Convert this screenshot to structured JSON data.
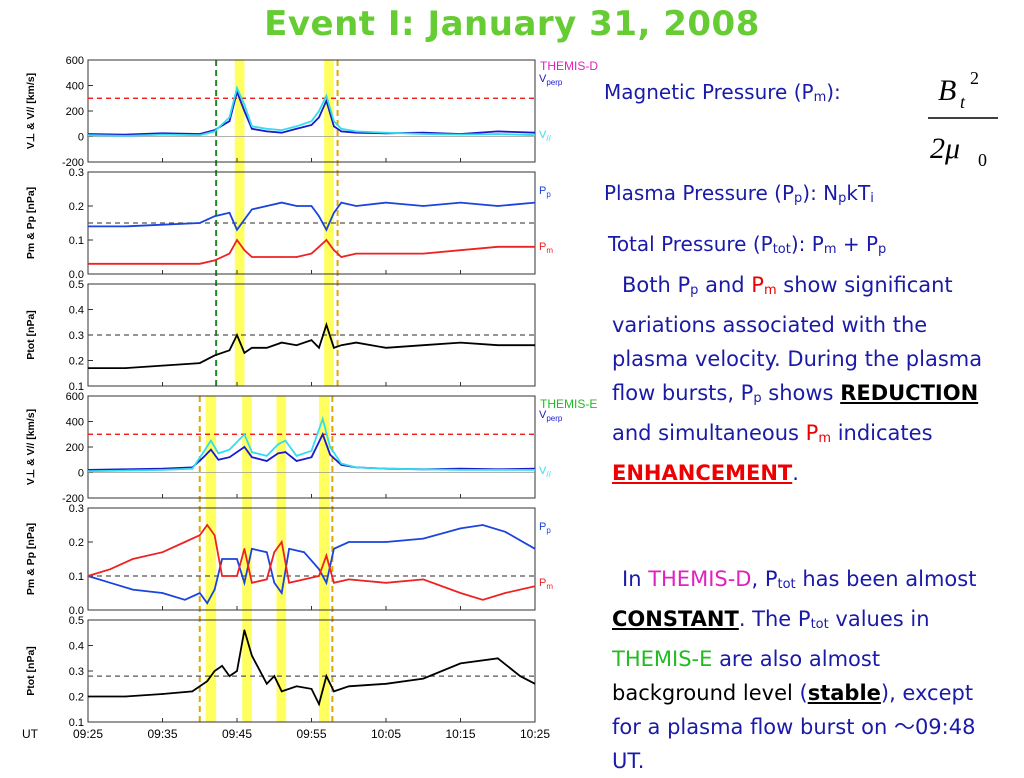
{
  "title": "Event I: January 31, 2008",
  "colors": {
    "title": "#66cc33",
    "text": "#1a1aa8",
    "red": "#ee0000",
    "magenta": "#e020c0",
    "green": "#22bb22",
    "vperp": "#1a1acc",
    "vpar": "#33ddee",
    "pp": "#1a44dd",
    "pm": "#ee2222",
    "ptot": "#000000",
    "highlight": "#ffff44"
  },
  "right_text": {
    "mag_pressure": {
      "label": "Magnetic Pressure (P",
      "sub": "m",
      "close": "):"
    },
    "formula": {
      "num": "B",
      "num_sub": "t",
      "num_sup": "2",
      "den": "2μ",
      "den_sub": "0"
    },
    "plasma_pressure": {
      "label": "Plasma Pressure (P",
      "sub": "p",
      "mid": "): N",
      "sub2": "p",
      "mid2": "kT",
      "sub3": "i"
    },
    "total_pressure": {
      "label": "Total Pressure (P",
      "sub": "tot",
      "mid": "): P",
      "sub2": "m",
      "mid2": " + P",
      "sub3": "p"
    },
    "para1": {
      "t1": "Both P",
      "s1": "p",
      "t2": " and ",
      "red1": "P",
      "red1_sub": "m",
      "t3": " show significant variations associated with the plasma velocity. During the plasma flow bursts, P",
      "s2": "p",
      "t4": " shows ",
      "emph1": "REDUCTION ",
      "t5": "and simultaneous ",
      "red2": "P",
      "red2_sub": "m",
      "t6": " indicates ",
      "emph2": "ENHANCEMENT",
      "t7": "."
    },
    "para2": {
      "t1": "In ",
      "themis_d": "THEMIS-D",
      "t2": ", P",
      "s1": "tot",
      "t3": " has been almost ",
      "emph": "CONSTANT",
      "t4": ". The P",
      "s2": "tot",
      "t5": " values in ",
      "themis_e": "THEMIS-E",
      "t6": " are also almost ",
      "bg": "background level",
      "t7": " (",
      "stable": "stable",
      "t8": "), except for a plasma flow burst on ～09:48 UT."
    }
  },
  "chart_data": {
    "type": "line",
    "x_ticks": [
      "09:25",
      "09:35",
      "09:45",
      "09:55",
      "10:05",
      "10:15",
      "10:25"
    ],
    "xlim_minutes": [
      0,
      60
    ],
    "ut_label": "UT",
    "spacecraft": [
      {
        "name": "THEMIS-D",
        "highlight_bands_min": [
          [
            19.7,
            21.0
          ],
          [
            31.7,
            33.0
          ]
        ],
        "dashed_lines_min": [
          {
            "t": 17.2,
            "color": "#228822"
          },
          {
            "t": 33.5,
            "color": "#ddaa00"
          }
        ]
      },
      {
        "name": "THEMIS-E",
        "highlight_bands_min": [
          [
            15.8,
            17.2
          ],
          [
            20.7,
            22.0
          ],
          [
            25.3,
            26.6
          ],
          [
            31.0,
            32.4
          ]
        ],
        "dashed_lines_min": [
          {
            "t": 15.0,
            "color": "#ddaa00"
          },
          {
            "t": 32.8,
            "color": "#ddaa00"
          }
        ]
      }
    ],
    "panels": [
      {
        "sc": 0,
        "ylabel": "V_perp & V_// [km/s]",
        "ylim": [
          -200,
          600
        ],
        "yticks": [
          "600",
          "400",
          "200",
          "0",
          "-200"
        ],
        "ref": 300,
        "ref_color": "#ee0000",
        "legend": [
          "V_perp",
          "V_//"
        ],
        "series": [
          {
            "name": "V_perp",
            "color": "#1a1acc",
            "x": [
              0,
              5,
              10,
              15,
              17,
              19,
              20,
              21,
              22,
              24,
              26,
              28,
              30,
              31,
              32,
              33,
              34,
              36,
              40,
              45,
              50,
              55,
              60
            ],
            "y": [
              20,
              15,
              25,
              20,
              50,
              120,
              350,
              200,
              60,
              40,
              30,
              60,
              90,
              150,
              280,
              80,
              40,
              30,
              25,
              30,
              20,
              40,
              30
            ]
          },
          {
            "name": "V_//",
            "color": "#33ddee",
            "x": [
              0,
              5,
              10,
              15,
              17,
              19,
              20,
              21,
              22,
              24,
              26,
              28,
              30,
              31,
              32,
              33,
              34,
              36,
              40,
              45,
              50,
              55,
              60
            ],
            "y": [
              10,
              5,
              15,
              10,
              40,
              150,
              380,
              250,
              80,
              60,
              50,
              80,
              120,
              200,
              320,
              120,
              60,
              40,
              30,
              20,
              15,
              20,
              10
            ]
          }
        ]
      },
      {
        "sc": 0,
        "ylabel": "P_m & P_p [nPa]",
        "ylim": [
          0,
          0.3
        ],
        "yticks": [
          "0.3",
          "0.2",
          "0.1",
          "0.0"
        ],
        "ref": 0.15,
        "ref_color": "#555555",
        "legend": [
          "P_p",
          "P_m"
        ],
        "series": [
          {
            "name": "P_p",
            "color": "#1a44dd",
            "x": [
              0,
              5,
              10,
              15,
              17,
              19,
              20,
              21,
              22,
              24,
              26,
              28,
              30,
              31,
              32,
              33,
              34,
              36,
              40,
              45,
              50,
              55,
              60
            ],
            "y": [
              0.14,
              0.14,
              0.145,
              0.15,
              0.17,
              0.18,
              0.13,
              0.16,
              0.19,
              0.2,
              0.21,
              0.2,
              0.2,
              0.17,
              0.13,
              0.18,
              0.21,
              0.2,
              0.21,
              0.2,
              0.21,
              0.2,
              0.21
            ]
          },
          {
            "name": "P_m",
            "color": "#ee2222",
            "x": [
              0,
              5,
              10,
              15,
              17,
              19,
              20,
              21,
              22,
              24,
              26,
              28,
              30,
              31,
              32,
              33,
              34,
              36,
              40,
              45,
              50,
              55,
              60
            ],
            "y": [
              0.03,
              0.03,
              0.03,
              0.03,
              0.04,
              0.06,
              0.1,
              0.07,
              0.05,
              0.05,
              0.05,
              0.05,
              0.06,
              0.08,
              0.1,
              0.07,
              0.05,
              0.06,
              0.06,
              0.06,
              0.07,
              0.08,
              0.08
            ]
          }
        ]
      },
      {
        "sc": 0,
        "ylabel": "P_tot [nPa]",
        "ylim": [
          0.1,
          0.5
        ],
        "yticks": [
          "0.5",
          "0.4",
          "0.3",
          "0.2",
          "0.1"
        ],
        "ref": 0.3,
        "ref_color": "#555555",
        "legend": [],
        "series": [
          {
            "name": "P_tot",
            "color": "#000000",
            "x": [
              0,
              5,
              10,
              15,
              17,
              19,
              20,
              21,
              22,
              24,
              26,
              28,
              30,
              31,
              32,
              33,
              34,
              36,
              40,
              45,
              50,
              55,
              60
            ],
            "y": [
              0.17,
              0.17,
              0.18,
              0.19,
              0.22,
              0.24,
              0.3,
              0.23,
              0.25,
              0.25,
              0.27,
              0.26,
              0.28,
              0.25,
              0.34,
              0.25,
              0.26,
              0.27,
              0.25,
              0.26,
              0.27,
              0.26,
              0.26
            ]
          }
        ]
      },
      {
        "sc": 1,
        "ylabel": "V_perp & V_// [km/s]",
        "ylim": [
          -200,
          600
        ],
        "yticks": [
          "600",
          "400",
          "200",
          "0",
          "-200"
        ],
        "ref": 300,
        "ref_color": "#ee0000",
        "legend": [
          "V_perp",
          "V_//"
        ],
        "series": [
          {
            "name": "V_perp",
            "color": "#1a1acc",
            "x": [
              0,
              5,
              10,
              14,
              15.5,
              16.5,
              17.5,
              19,
              21,
              22,
              24,
              25.5,
              26.5,
              28,
              30,
              31.5,
              32.5,
              34,
              36,
              40,
              45,
              50,
              55,
              60
            ],
            "y": [
              20,
              25,
              30,
              40,
              120,
              180,
              100,
              120,
              200,
              120,
              90,
              150,
              160,
              90,
              120,
              300,
              140,
              60,
              40,
              30,
              25,
              30,
              25,
              30
            ]
          },
          {
            "name": "V_//",
            "color": "#33ddee",
            "x": [
              0,
              5,
              10,
              14,
              15.5,
              16.5,
              17.5,
              19,
              21,
              22,
              24,
              25.5,
              26.5,
              28,
              30,
              31.5,
              32.5,
              34,
              36,
              40,
              45,
              50,
              55,
              60
            ],
            "y": [
              10,
              15,
              20,
              30,
              160,
              250,
              150,
              180,
              300,
              160,
              130,
              220,
              250,
              130,
              170,
              420,
              200,
              70,
              40,
              30,
              25,
              20,
              20,
              20
            ]
          }
        ]
      },
      {
        "sc": 1,
        "ylabel": "P_m & P_p [nPa]",
        "ylim": [
          0,
          0.3
        ],
        "yticks": [
          "0.3",
          "0.2",
          "0.1",
          "0.0"
        ],
        "ref": 0.1,
        "ref_color": "#555555",
        "legend": [
          "P_p",
          "P_m"
        ],
        "series": [
          {
            "name": "P_p",
            "color": "#1a44dd",
            "x": [
              0,
              3,
              6,
              10,
              13,
              15,
              16,
              17,
              18,
              20,
              21,
              22,
              24,
              25,
              26,
              27,
              29,
              31,
              32,
              33,
              35,
              40,
              45,
              50,
              53,
              56,
              60
            ],
            "y": [
              0.1,
              0.08,
              0.06,
              0.05,
              0.03,
              0.05,
              0.02,
              0.06,
              0.15,
              0.15,
              0.08,
              0.18,
              0.17,
              0.08,
              0.05,
              0.18,
              0.17,
              0.12,
              0.08,
              0.18,
              0.2,
              0.2,
              0.21,
              0.24,
              0.25,
              0.23,
              0.18
            ]
          },
          {
            "name": "P_m",
            "color": "#ee2222",
            "x": [
              0,
              3,
              6,
              10,
              13,
              15,
              16,
              17,
              18,
              20,
              21,
              22,
              24,
              25,
              26,
              27,
              29,
              31,
              32,
              33,
              35,
              40,
              45,
              50,
              53,
              56,
              60
            ],
            "y": [
              0.1,
              0.12,
              0.15,
              0.17,
              0.2,
              0.22,
              0.25,
              0.22,
              0.1,
              0.1,
              0.18,
              0.08,
              0.09,
              0.17,
              0.2,
              0.08,
              0.09,
              0.1,
              0.16,
              0.08,
              0.09,
              0.08,
              0.09,
              0.05,
              0.03,
              0.05,
              0.07
            ]
          }
        ]
      },
      {
        "sc": 1,
        "ylabel": "P_tot [nPa]",
        "ylim": [
          0.1,
          0.5
        ],
        "yticks": [
          "0.5",
          "0.4",
          "0.3",
          "0.2",
          "0.1"
        ],
        "ref": 0.28,
        "ref_color": "#555555",
        "legend": [],
        "series": [
          {
            "name": "P_tot",
            "color": "#000000",
            "x": [
              0,
              5,
              10,
              14,
              16,
              17,
              18,
              19,
              20,
              21,
              22,
              24,
              25,
              26,
              28,
              30,
              31,
              32,
              33,
              35,
              40,
              45,
              50,
              55,
              58,
              60
            ],
            "y": [
              0.2,
              0.2,
              0.21,
              0.22,
              0.26,
              0.3,
              0.32,
              0.28,
              0.3,
              0.46,
              0.36,
              0.25,
              0.28,
              0.22,
              0.24,
              0.23,
              0.17,
              0.28,
              0.22,
              0.24,
              0.25,
              0.27,
              0.33,
              0.35,
              0.28,
              0.25
            ]
          }
        ]
      }
    ]
  }
}
